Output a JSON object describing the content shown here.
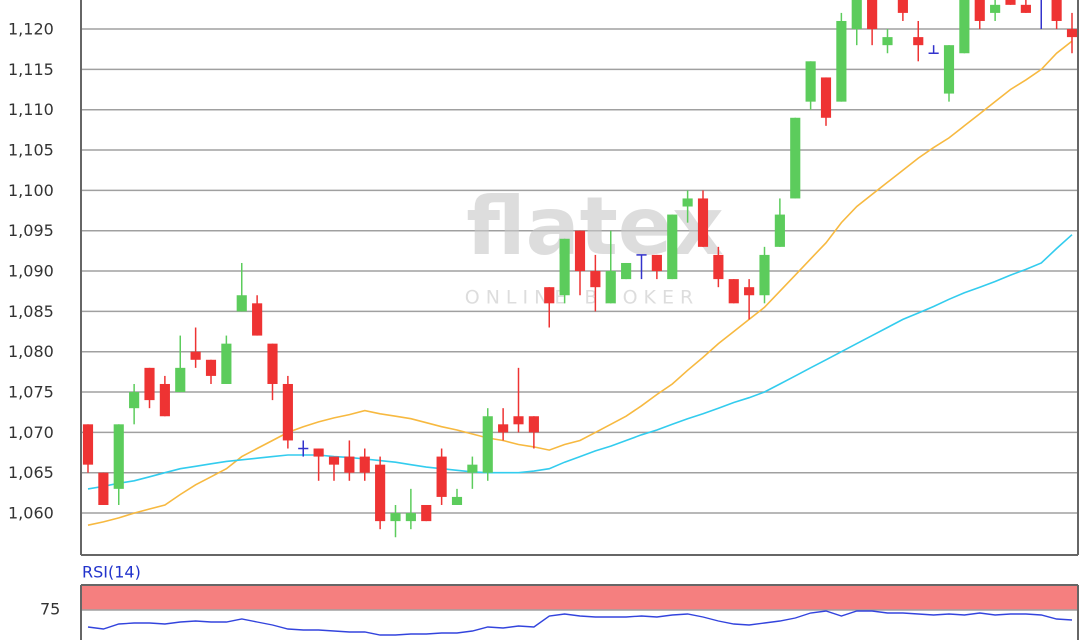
{
  "chart_data": [
    {
      "type": "candlestick",
      "categories": [
        null,
        null,
        null,
        null,
        null,
        null,
        null,
        null,
        null,
        null,
        null,
        null,
        null,
        null,
        null,
        null,
        null,
        null,
        null,
        null,
        null,
        null,
        null,
        null,
        null,
        null,
        null,
        null,
        null,
        null,
        null,
        null,
        null,
        null,
        null,
        null,
        null,
        null,
        null,
        null,
        null,
        null,
        null,
        null,
        null,
        null,
        null,
        null,
        null,
        null,
        null,
        null,
        null,
        null,
        null,
        null,
        null,
        null,
        null,
        null,
        null,
        null,
        null,
        null,
        null
      ],
      "open": [
        1071,
        1065,
        1063,
        1073,
        1078,
        1076,
        1075,
        1080,
        1079,
        1076,
        1085,
        1086,
        1081,
        1076,
        1068,
        1068,
        1067,
        1067,
        1067,
        1066,
        1059,
        1059,
        1061,
        1067,
        1061,
        1065,
        1065,
        1071,
        1072,
        1072,
        1088,
        1087,
        1095,
        1090,
        1086,
        1089,
        1092,
        1092,
        1089,
        1098,
        1099,
        1092,
        1089,
        1088,
        1087,
        1093,
        1099,
        1111,
        1114,
        1111,
        1120,
        1124,
        1118,
        1124,
        1119,
        1117,
        1112,
        1117,
        1124,
        1122,
        1124,
        1123,
        1124,
        1124,
        1120
      ],
      "high": [
        1071,
        1065,
        1071,
        1076,
        1078,
        1077,
        1082,
        1083,
        1079,
        1082,
        1091,
        1087,
        1081,
        1077,
        1069,
        1068,
        1067,
        1069,
        1068,
        1067,
        1061,
        1063,
        1061,
        1068,
        1063,
        1067,
        1073,
        1073,
        1078,
        1072,
        1088,
        1094,
        1095,
        1092,
        1095,
        1091,
        1092,
        1092,
        1097,
        1100,
        1100,
        1093,
        1089,
        1089,
        1093,
        1099,
        1109,
        1116,
        1114,
        1122,
        1124,
        1124,
        1120,
        1124,
        1121,
        1118,
        1118,
        1124,
        1124,
        1124,
        1124,
        1124,
        1124,
        1124,
        1122
      ],
      "low": [
        1065,
        1061,
        1061,
        1071,
        1073,
        1072,
        1075,
        1078,
        1076,
        1076,
        1085,
        1082,
        1074,
        1068,
        1067,
        1064,
        1064,
        1064,
        1064,
        1058,
        1057,
        1058,
        1059,
        1061,
        1061,
        1063,
        1064,
        1069,
        1070,
        1068,
        1083,
        1086,
        1087,
        1085,
        1086,
        1089,
        1089,
        1089,
        1089,
        1096,
        1093,
        1088,
        1086,
        1084,
        1086,
        1093,
        1099,
        1110,
        1108,
        1111,
        1118,
        1118,
        1117,
        1121,
        1116,
        1117,
        1111,
        1117,
        1120,
        1121,
        1123,
        1122,
        1120,
        1120,
        1117
      ],
      "close": [
        1066,
        1061,
        1071,
        1075,
        1074,
        1072,
        1078,
        1079,
        1077,
        1081,
        1087,
        1082,
        1076,
        1069,
        1068,
        1067,
        1066,
        1065,
        1065,
        1059,
        1060,
        1060,
        1059,
        1062,
        1062,
        1066,
        1072,
        1070,
        1071,
        1070,
        1086,
        1094,
        1090,
        1088,
        1090,
        1091,
        1092,
        1090,
        1097,
        1099,
        1093,
        1089,
        1086,
        1087,
        1092,
        1097,
        1109,
        1116,
        1109,
        1121,
        1124,
        1120,
        1119,
        1122,
        1118,
        1117,
        1118,
        1124,
        1121,
        1123,
        1123,
        1122,
        1124,
        1121,
        1119
      ],
      "up_color": "#5ccc5c",
      "down_color": "#ee3333",
      "doji_color": "#3333cc",
      "series": [
        {
          "color": "#f7b940",
          "values": [
            1058.5,
            1058.9,
            1059.4,
            1060,
            1060.5,
            1061,
            1062.3,
            1063.5,
            1064.5,
            1065.5,
            1067,
            1068,
            1069,
            1070,
            1070.7,
            1071.3,
            1071.8,
            1072.2,
            1072.7,
            1072.3,
            1072,
            1071.7,
            1071.2,
            1070.7,
            1070.3,
            1069.8,
            1069.3,
            1069,
            1068.5,
            1068.2,
            1067.8,
            1068.5,
            1069,
            1070,
            1071,
            1072,
            1073.3,
            1074.7,
            1076,
            1077.7,
            1079.3,
            1081,
            1082.5,
            1084,
            1085.5,
            1087.5,
            1089.5,
            1091.5,
            1093.5,
            1096,
            1098,
            1099.5,
            1101,
            1102.5,
            1104,
            1105.3,
            1106.5,
            1108,
            1109.5,
            1111,
            1112.5,
            1113.7,
            1115,
            1117,
            1118.5
          ]
        },
        {
          "color": "#33ccee",
          "values": [
            1063,
            1063.3,
            1063.7,
            1064,
            1064.5,
            1065,
            1065.5,
            1065.8,
            1066.1,
            1066.4,
            1066.6,
            1066.8,
            1067,
            1067.2,
            1067.2,
            1067.2,
            1067,
            1066.9,
            1066.7,
            1066.5,
            1066.3,
            1066,
            1065.7,
            1065.5,
            1065.3,
            1065.1,
            1065,
            1065,
            1065,
            1065.2,
            1065.5,
            1066.3,
            1067,
            1067.7,
            1068.3,
            1069,
            1069.7,
            1070.3,
            1071,
            1071.7,
            1072.3,
            1073,
            1073.7,
            1074.3,
            1075,
            1076,
            1077,
            1078,
            1079,
            1080,
            1081,
            1082,
            1083,
            1084,
            1084.8,
            1085.6,
            1086.5,
            1087.3,
            1088,
            1088.7,
            1089.5,
            1090.2,
            1091,
            1092.8,
            1094.5
          ]
        }
      ],
      "ylim": [
        1054.8,
        1123.6
      ],
      "yticks": [
        {
          "value": 1060,
          "label": "1,060"
        },
        {
          "value": 1065,
          "label": "1,065"
        },
        {
          "value": 1070,
          "label": "1,070"
        },
        {
          "value": 1075,
          "label": "1,075"
        },
        {
          "value": 1080,
          "label": "1,080"
        },
        {
          "value": 1085,
          "label": "1,085"
        },
        {
          "value": 1090,
          "label": "1,090"
        },
        {
          "value": 1095,
          "label": "1,095"
        },
        {
          "value": 1100,
          "label": "1,100"
        },
        {
          "value": 1105,
          "label": "1,105"
        },
        {
          "value": 1110,
          "label": "1,110"
        },
        {
          "value": 1115,
          "label": "1,115"
        },
        {
          "value": 1120,
          "label": "1,120"
        }
      ],
      "grid": true,
      "watermark": "flatex",
      "watermark_sub": "ONLINE BROKER"
    },
    {
      "type": "line",
      "title": "RSI(14)",
      "series": [
        {
          "color": "#3344dd",
          "values": [
            58,
            56,
            61,
            62,
            62,
            61,
            63,
            64,
            63,
            63,
            66,
            63,
            60,
            56,
            55,
            55,
            54,
            53,
            53,
            50,
            50,
            51,
            51,
            52,
            52,
            54,
            58,
            57,
            59,
            58,
            69,
            71,
            69,
            68,
            68,
            68,
            69,
            68,
            70,
            71,
            68,
            64,
            61,
            60,
            62,
            64,
            67,
            72,
            74,
            69,
            74,
            74,
            72,
            72,
            71,
            70,
            71,
            70,
            72,
            70,
            71,
            71,
            70,
            66,
            65
          ]
        }
      ],
      "ylim": [
        45,
        100
      ],
      "yticks": [
        75
      ],
      "overbought": 75,
      "band_color": "#f57f7f",
      "grid": true
    }
  ]
}
